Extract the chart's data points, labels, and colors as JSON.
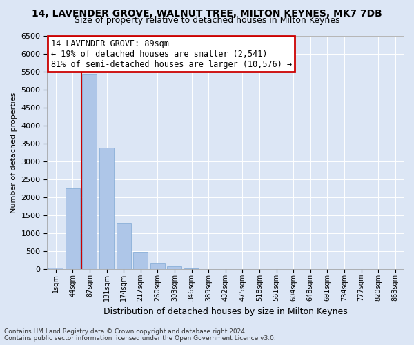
{
  "title": "14, LAVENDER GROVE, WALNUT TREE, MILTON KEYNES, MK7 7DB",
  "subtitle": "Size of property relative to detached houses in Milton Keynes",
  "xlabel": "Distribution of detached houses by size in Milton Keynes",
  "ylabel": "Number of detached properties",
  "footer_line1": "Contains HM Land Registry data © Crown copyright and database right 2024.",
  "footer_line2": "Contains public sector information licensed under the Open Government Licence v3.0.",
  "bar_labels": [
    "1sqm",
    "44sqm",
    "87sqm",
    "131sqm",
    "174sqm",
    "217sqm",
    "260sqm",
    "303sqm",
    "346sqm",
    "389sqm",
    "432sqm",
    "475sqm",
    "518sqm",
    "561sqm",
    "604sqm",
    "648sqm",
    "691sqm",
    "734sqm",
    "777sqm",
    "820sqm",
    "863sqm"
  ],
  "bar_values": [
    50,
    2260,
    5430,
    3380,
    1300,
    480,
    185,
    80,
    30,
    0,
    0,
    0,
    0,
    0,
    0,
    0,
    0,
    0,
    0,
    0,
    0
  ],
  "bar_color": "#aec6e8",
  "bar_edge_color": "#7fa8d4",
  "highlight_bar_index": 2,
  "highlight_line_color": "#cc0000",
  "annotation_text": "14 LAVENDER GROVE: 89sqm\n← 19% of detached houses are smaller (2,541)\n81% of semi-detached houses are larger (10,576) →",
  "annotation_box_color": "#cc0000",
  "ylim": [
    0,
    6500
  ],
  "yticks": [
    0,
    500,
    1000,
    1500,
    2000,
    2500,
    3000,
    3500,
    4000,
    4500,
    5000,
    5500,
    6000,
    6500
  ],
  "bg_color": "#dce6f5",
  "plot_bg_color": "#dce6f5",
  "grid_color": "#ffffff",
  "title_fontsize": 10,
  "subtitle_fontsize": 9,
  "footer_fontsize": 6.5
}
